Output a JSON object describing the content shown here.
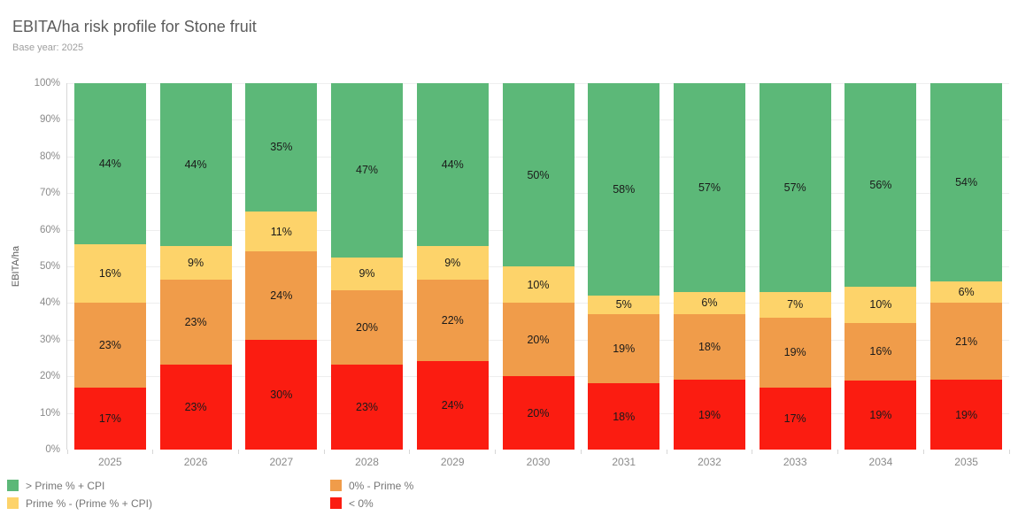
{
  "header": {
    "title": "EBITA/ha risk profile for Stone fruit",
    "subtitle": "Base year: 2025"
  },
  "chart_data": {
    "type": "bar",
    "stacked": true,
    "title": "EBITA/ha risk profile for Stone fruit",
    "subtitle": "Base year: 2025",
    "xlabel": "",
    "ylabel": "EBITA/ha",
    "ylim": [
      0,
      100
    ],
    "y_tick_labels": [
      "0%",
      "10%",
      "20%",
      "30%",
      "40%",
      "50%",
      "60%",
      "70%",
      "80%",
      "90%",
      "100%"
    ],
    "grid": true,
    "categories": [
      "2025",
      "2026",
      "2027",
      "2028",
      "2029",
      "2030",
      "2031",
      "2032",
      "2033",
      "2034",
      "2035"
    ],
    "series": [
      {
        "name": "> Prime % + CPI",
        "color": "#5cb878",
        "values": [
          44,
          44,
          35,
          47,
          44,
          50,
          58,
          57,
          57,
          56,
          54
        ]
      },
      {
        "name": "Prime % - (Prime % + CPI)",
        "color": "#fdd36a",
        "values": [
          16,
          9,
          11,
          9,
          9,
          10,
          5,
          6,
          7,
          10,
          6
        ]
      },
      {
        "name": "0% - Prime %",
        "color": "#f09c4a",
        "values": [
          23,
          23,
          24,
          20,
          22,
          20,
          19,
          18,
          19,
          16,
          21
        ]
      },
      {
        "name": "< 0%",
        "color": "#fb1c11",
        "values": [
          17,
          23,
          30,
          23,
          24,
          20,
          18,
          19,
          17,
          19,
          19
        ]
      }
    ],
    "label_suffix": "%",
    "legend_position": "bottom",
    "legend_columns": [
      [
        0,
        1
      ],
      [
        2,
        3
      ]
    ]
  },
  "colors": {
    "grid": "#eeeeee",
    "axis": "#d7d7d7",
    "tick_text": "#8a8a8a",
    "bar_label": "#1a1a1a"
  }
}
